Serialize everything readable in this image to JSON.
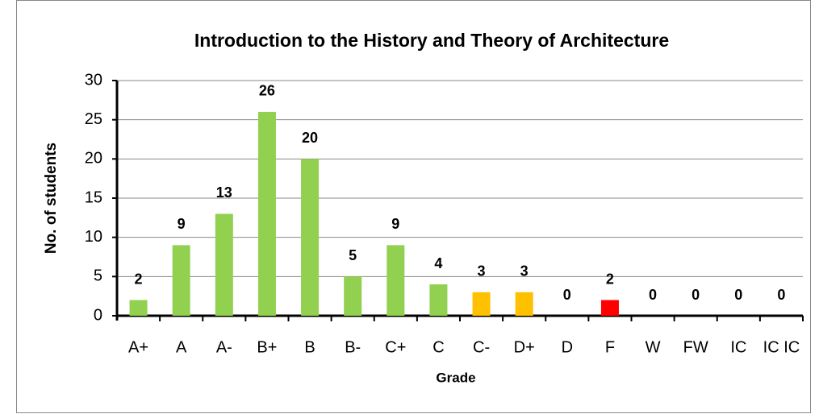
{
  "chart_data": {
    "type": "bar",
    "title": "Introduction to the History and Theory of Architecture",
    "x_label": "Grade",
    "y_label": "No. of students",
    "categories": [
      "A+",
      "A",
      "A-",
      "B+",
      "B",
      "B-",
      "C+",
      "C",
      "C-",
      "D+",
      "D",
      "F",
      "W",
      "FW",
      "IC",
      "IC IC"
    ],
    "values": [
      2,
      9,
      13,
      26,
      20,
      5,
      9,
      4,
      3,
      3,
      0,
      2,
      0,
      0,
      0,
      0
    ],
    "colors": [
      "#92d050",
      "#92d050",
      "#92d050",
      "#92d050",
      "#92d050",
      "#92d050",
      "#92d050",
      "#92d050",
      "#ffc000",
      "#ffc000",
      "#92d050",
      "#ff0000",
      "#92d050",
      "#92d050",
      "#92d050",
      "#92d050"
    ],
    "ylim": [
      0,
      30
    ],
    "yticks": [
      0,
      5,
      10,
      15,
      20,
      25,
      30
    ],
    "grid": true
  }
}
